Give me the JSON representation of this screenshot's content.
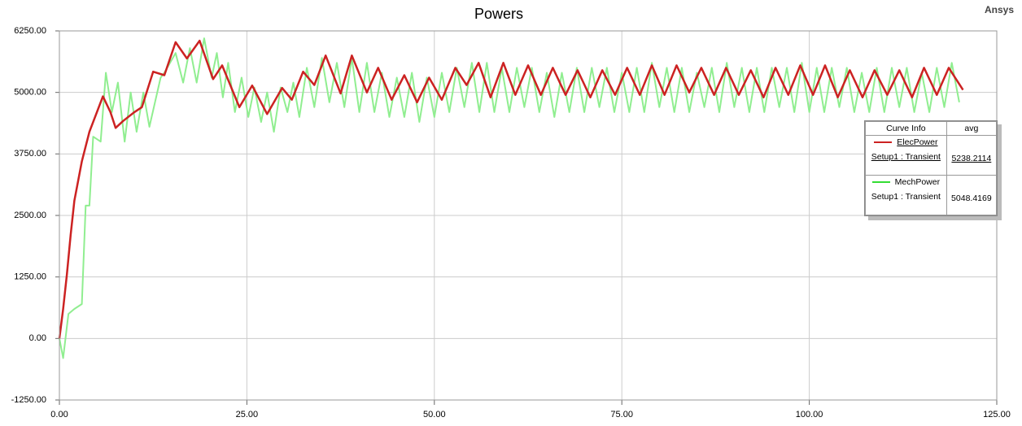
{
  "chart_data": {
    "type": "line",
    "title": "Powers",
    "brand": "Ansys",
    "xlim": [
      0,
      125
    ],
    "ylim": [
      -1250,
      6250
    ],
    "xticks": [
      {
        "value": 0,
        "label": "0.00"
      },
      {
        "value": 25,
        "label": "25.00"
      },
      {
        "value": 50,
        "label": "50.00"
      },
      {
        "value": 75,
        "label": "75.00"
      },
      {
        "value": 100,
        "label": "100.00"
      },
      {
        "value": 125,
        "label": "125.00"
      }
    ],
    "yticks": [
      {
        "value": -1250,
        "label": "-1250.00"
      },
      {
        "value": 0,
        "label": "0.00"
      },
      {
        "value": 1250,
        "label": "1250.00"
      },
      {
        "value": 2500,
        "label": "2500.00"
      },
      {
        "value": 3750,
        "label": "3750.00"
      },
      {
        "value": 5000,
        "label": "5000.00"
      },
      {
        "value": 6250,
        "label": "6250.00"
      }
    ],
    "grid": true,
    "legend_header": [
      "Curve Info",
      "avg"
    ],
    "series": [
      {
        "name": "ElecPower",
        "context": "Setup1 : Transient",
        "avg": 5238.2114,
        "color": "#cc2222",
        "x": [
          0,
          0.5,
          1,
          1.5,
          2,
          2.5,
          3,
          4,
          5,
          5.8,
          6.8,
          7.5,
          8.5,
          10,
          11,
          12.5,
          14,
          15.5,
          17,
          18.7,
          20.5,
          21.7,
          24,
          25.7,
          27.7,
          29.7,
          31,
          32.5,
          34,
          35.5,
          37.5,
          39,
          41,
          42.5,
          44.3,
          46,
          47.7,
          49.3,
          51,
          52.8,
          54.3,
          55.9,
          57.5,
          59.2,
          60.8,
          62.5,
          64.2,
          65.8,
          67.5,
          69.1,
          70.8,
          72.4,
          74.1,
          75.7,
          77.4,
          79,
          80.7,
          82.3,
          84,
          85.6,
          87.3,
          88.9,
          90.6,
          92.2,
          93.9,
          95.5,
          97.2,
          98.8,
          100.5,
          102.1,
          103.8,
          105.4,
          107.1,
          108.7,
          110.4,
          112,
          113.7,
          115.3,
          117,
          118.6,
          120.5
        ],
        "values": [
          0,
          600,
          1300,
          2100,
          2800,
          3200,
          3600,
          4200,
          4600,
          4920,
          4600,
          4280,
          4420,
          4600,
          4700,
          5420,
          5350,
          6020,
          5690,
          6050,
          5270,
          5550,
          4700,
          5140,
          4560,
          5090,
          4850,
          5420,
          5150,
          5750,
          4980,
          5750,
          5000,
          5500,
          4850,
          5350,
          4800,
          5300,
          4850,
          5500,
          5150,
          5600,
          4900,
          5600,
          4950,
          5550,
          4950,
          5500,
          4950,
          5450,
          4900,
          5450,
          4950,
          5500,
          4950,
          5550,
          4950,
          5550,
          5000,
          5500,
          4950,
          5500,
          4950,
          5450,
          4900,
          5500,
          4950,
          5550,
          4950,
          5550,
          4900,
          5450,
          4900,
          5450,
          4950,
          5450,
          4900,
          5500,
          4950,
          5500,
          5050
        ]
      },
      {
        "name": "MechPower",
        "context": "Setup1 : Transient",
        "avg": 5048.4169,
        "color": "#90ee90",
        "legend_color": "#33dd33",
        "x": [
          0,
          0.5,
          1.2,
          2,
          3,
          3.5,
          4,
          4.5,
          5.5,
          6.2,
          7,
          7.8,
          8.7,
          9.5,
          10.3,
          11.2,
          12,
          13.5,
          14,
          15.5,
          16.5,
          17.4,
          18.3,
          19.3,
          20.3,
          21,
          21.8,
          22.5,
          23.4,
          24.3,
          25.2,
          26,
          26.9,
          27.7,
          28.6,
          29.5,
          30.4,
          31.2,
          32,
          33,
          34,
          35,
          36,
          37,
          38,
          39,
          40,
          41,
          42,
          43,
          44,
          45,
          46,
          47,
          48,
          49,
          50,
          51,
          52,
          53,
          54,
          55,
          56,
          57,
          58,
          59,
          60,
          61,
          62,
          63,
          64,
          65,
          66,
          67,
          68,
          69,
          70,
          71,
          72,
          73,
          74,
          75,
          76,
          77,
          78,
          79,
          80,
          81,
          82,
          83,
          84,
          85,
          86,
          87,
          88,
          89,
          90,
          91,
          92,
          93,
          94,
          95,
          96,
          97,
          98,
          99,
          100,
          101,
          102,
          103,
          104,
          105,
          106,
          107,
          108,
          109,
          110,
          111,
          112,
          113,
          114,
          115,
          116,
          117,
          118,
          119,
          120
        ],
        "values": [
          0,
          -400,
          500,
          600,
          700,
          2700,
          2700,
          4100,
          4000,
          5400,
          4600,
          5200,
          4000,
          5000,
          4200,
          5000,
          4300,
          5300,
          5400,
          5800,
          5200,
          5900,
          5200,
          6100,
          5300,
          5800,
          4900,
          5600,
          4600,
          5300,
          4500,
          5100,
          4400,
          5000,
          4200,
          5100,
          4600,
          5200,
          4500,
          5500,
          4700,
          5700,
          4800,
          5600,
          4700,
          5700,
          4600,
          5600,
          4600,
          5400,
          4500,
          5300,
          4500,
          5400,
          4400,
          5300,
          4500,
          5400,
          4600,
          5500,
          4700,
          5600,
          4600,
          5600,
          4600,
          5500,
          4600,
          5500,
          4700,
          5500,
          4600,
          5400,
          4500,
          5400,
          4600,
          5500,
          4600,
          5500,
          4700,
          5500,
          4600,
          5400,
          4600,
          5500,
          4600,
          5600,
          4700,
          5500,
          4600,
          5500,
          4600,
          5400,
          4700,
          5500,
          4600,
          5600,
          4700,
          5500,
          4600,
          5500,
          4600,
          5500,
          4700,
          5500,
          4600,
          5600,
          4600,
          5500,
          4600,
          5500,
          4700,
          5500,
          4600,
          5400,
          4600,
          5500,
          4600,
          5500,
          4700,
          5500,
          4600,
          5400,
          4600,
          5500,
          4700,
          5600,
          4800
        ]
      }
    ]
  }
}
